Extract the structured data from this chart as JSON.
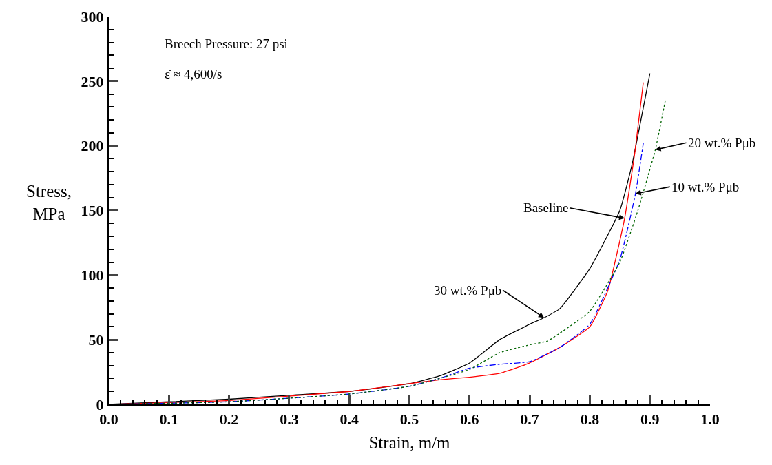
{
  "chart_data": {
    "type": "line",
    "xlabel": "Strain, m/m",
    "ylabel": "Stress,\nMPa",
    "xlim": [
      0,
      1
    ],
    "ylim": [
      0,
      300
    ],
    "xticks": [
      {
        "value": 0,
        "label": "0.0"
      },
      {
        "value": 0.1,
        "label": "0.1"
      },
      {
        "value": 0.2,
        "label": "0.2"
      },
      {
        "value": 0.3,
        "label": "0.3"
      },
      {
        "value": 0.4,
        "label": "0.4"
      },
      {
        "value": 0.5,
        "label": "0.5"
      },
      {
        "value": 0.6,
        "label": "0.6"
      },
      {
        "value": 0.7,
        "label": "0.7"
      },
      {
        "value": 0.8,
        "label": "0.8"
      },
      {
        "value": 0.9,
        "label": "0.9"
      },
      {
        "value": 1,
        "label": "1.0"
      }
    ],
    "yticks": [
      0,
      50,
      100,
      150,
      200,
      250,
      300
    ],
    "grid": false,
    "marker": "none",
    "series": [
      {
        "color": "#000000",
        "line_style": "solid",
        "x": [
          0,
          0.1,
          0.2,
          0.3,
          0.4,
          0.5,
          0.55,
          0.6,
          0.65,
          0.7,
          0.724,
          0.75,
          0.8,
          0.85,
          0.87,
          0.9
        ],
        "values": [
          0,
          2,
          4,
          7,
          10,
          16,
          22,
          32,
          50,
          62,
          67,
          74,
          105,
          150,
          185,
          256
        ]
      },
      {
        "color": "#ff0000",
        "line_style": "solid",
        "x": [
          0,
          0.2,
          0.4,
          0.5,
          0.55,
          0.6,
          0.65,
          0.7,
          0.75,
          0.8,
          0.83,
          0.858,
          0.875,
          0.889
        ],
        "values": [
          0,
          3,
          10,
          16,
          19,
          21,
          24,
          32,
          44,
          60,
          88,
          144,
          195,
          249
        ]
      },
      {
        "color": "#0000ff",
        "line_style": "dashed",
        "x": [
          0,
          0.2,
          0.4,
          0.5,
          0.55,
          0.6,
          0.65,
          0.7,
          0.75,
          0.8,
          0.85,
          0.876,
          0.889
        ],
        "values": [
          0,
          2,
          8,
          14,
          20,
          28,
          31,
          33,
          44,
          62,
          112,
          163,
          202
        ]
      },
      {
        "color": "#006400",
        "line_style": "dotted",
        "x": [
          0,
          0.2,
          0.4,
          0.5,
          0.55,
          0.6,
          0.65,
          0.7,
          0.73,
          0.75,
          0.8,
          0.85,
          0.88,
          0.909,
          0.926
        ],
        "values": [
          0,
          2,
          8,
          14,
          20,
          27,
          40,
          46,
          49,
          55,
          72,
          110,
          150,
          197,
          236
        ]
      }
    ],
    "annotations": [
      "Breech Pressure: 27 psi",
      "ε̇ ≈ 4,600/s",
      {
        "text": "30 wt.% Pμb",
        "x": 0.724,
        "y": 67
      },
      {
        "text": "Baseline",
        "x": 0.858,
        "y": 144
      },
      {
        "text": "10 wt.% Pμb",
        "x": 0.876,
        "y": 163
      },
      {
        "text": "20 wt.% Pμb",
        "x": 0.909,
        "y": 197
      }
    ]
  }
}
